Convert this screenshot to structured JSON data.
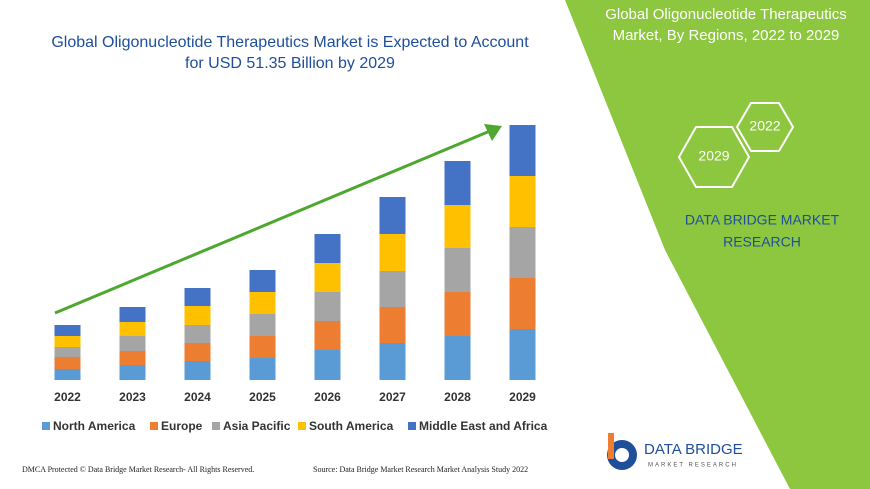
{
  "chart_data": {
    "type": "bar",
    "stacked": true,
    "title": [
      "Global Oligonucleotide Therapeutics Market is Expected to Account",
      "for USD 51.35 Billion by 2029"
    ],
    "categories": [
      "2022",
      "2023",
      "2024",
      "2025",
      "2026",
      "2027",
      "2028",
      "2029"
    ],
    "ylim": [
      0,
      255
    ],
    "series": [
      {
        "name": "North America",
        "color": "#5b9bd5",
        "values": [
          11,
          15,
          19,
          22,
          30,
          37,
          44,
          51
        ]
      },
      {
        "name": "Europe",
        "color": "#ed7d31",
        "values": [
          12,
          14,
          18,
          22,
          29,
          36,
          44,
          51
        ]
      },
      {
        "name": "Asia Pacific",
        "color": "#a5a5a5",
        "values": [
          10,
          15,
          18,
          22,
          29,
          36,
          44,
          51
        ]
      },
      {
        "name": "South America",
        "color": "#ffc000",
        "values": [
          11,
          14,
          19,
          22,
          29,
          37,
          43,
          51
        ]
      },
      {
        "name": "Middle East and Africa",
        "color": "#4472c4",
        "values": [
          11,
          15,
          18,
          22,
          29,
          37,
          44,
          51
        ]
      }
    ]
  },
  "panel": {
    "title": [
      "Global Oligonucleotide Therapeutics",
      "Market, By Regions, 2022 to 2029"
    ],
    "hexagons": [
      "2029",
      "2022"
    ],
    "brand": [
      "DATA BRIDGE MARKET",
      "RESEARCH"
    ]
  },
  "logo": {
    "name": "DATA BRIDGE",
    "tagline": "MARKET RESEARCH"
  },
  "footer": {
    "left": "DMCA Protected © Data Bridge Market Research- All Rights Reserved.",
    "right": "Source: Data Bridge Market Research Market Analysis Study 2022"
  }
}
